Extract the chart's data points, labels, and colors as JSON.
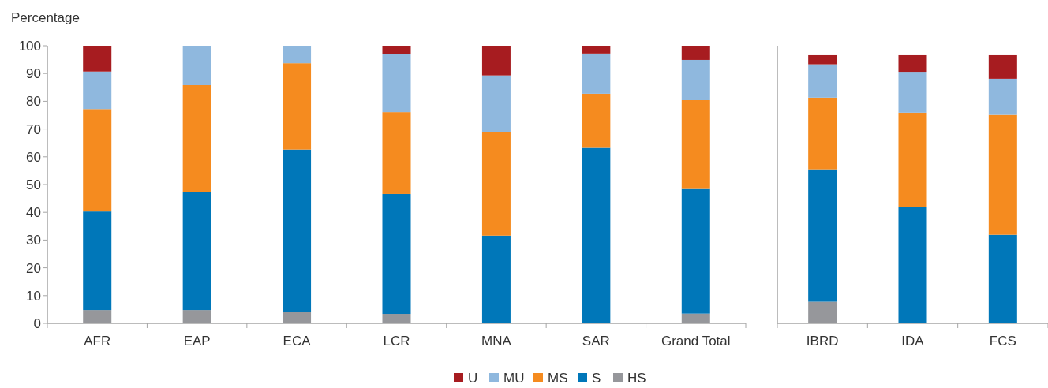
{
  "chart_data": [
    {
      "type": "bar",
      "stacked": true,
      "ylabel": "Percentage",
      "categories": [
        "AFR",
        "EAP",
        "ECA",
        "LCR",
        "MNA",
        "SAR",
        "Grand Total"
      ],
      "ylim": [
        0,
        100
      ],
      "yticks": [
        0,
        10,
        20,
        30,
        40,
        50,
        60,
        70,
        80,
        90,
        100
      ],
      "legend": "bottom",
      "series": [
        {
          "name": "HS",
          "color": "#96979b",
          "values": [
            4.8,
            4.8,
            4.2,
            3.4,
            0,
            0,
            3.5
          ]
        },
        {
          "name": "S",
          "color": "#0077b9",
          "values": [
            35.5,
            42.5,
            58.4,
            43.2,
            31.6,
            63.2,
            44.9
          ]
        },
        {
          "name": "MS",
          "color": "#f58b1f",
          "values": [
            36.9,
            38.5,
            31.1,
            29.5,
            37.2,
            19.5,
            32.0
          ]
        },
        {
          "name": "MU",
          "color": "#8fb8de",
          "values": [
            13.5,
            14.2,
            6.3,
            20.8,
            20.5,
            14.5,
            14.5
          ]
        },
        {
          "name": "U",
          "color": "#a71c20",
          "values": [
            9.3,
            0,
            0,
            3.1,
            10.7,
            2.8,
            5.1
          ]
        }
      ]
    },
    {
      "type": "bar",
      "stacked": true,
      "categories": [
        "IBRD",
        "IDA",
        "FCS"
      ],
      "ylim": [
        0,
        100
      ],
      "yticks": [
        0,
        10,
        20,
        30,
        40,
        50,
        60,
        70,
        80,
        90,
        100
      ],
      "tick_labels": "x",
      "series": [
        {
          "color": "#96979b",
          "values": [
            7.8,
            0,
            0
          ]
        },
        {
          "color": "#0077b9",
          "values": [
            47.7,
            41.8,
            31.9
          ]
        },
        {
          "color": "#f58b1f",
          "values": [
            25.8,
            34.1,
            43.2
          ]
        },
        {
          "color": "#8fb8de",
          "values": [
            12.0,
            14.7,
            13.0
          ]
        },
        {
          "color": "#a71c20",
          "values": [
            3.3,
            6.0,
            8.5
          ]
        }
      ]
    }
  ]
}
